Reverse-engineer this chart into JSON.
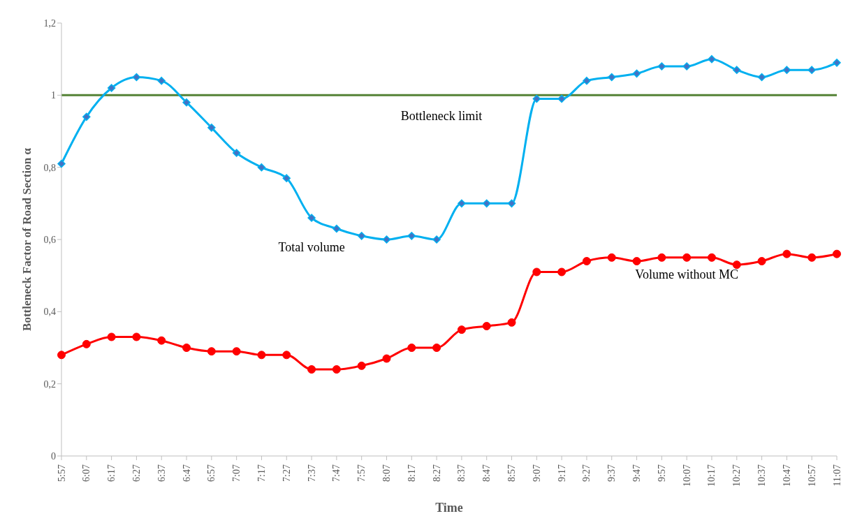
{
  "chart_data": {
    "type": "line",
    "xlabel": "Time",
    "ylabel": "Bottleneck Factor of Road Section α",
    "categories": [
      "5:57",
      "6:07",
      "6:17",
      "6:27",
      "6:37",
      "6:47",
      "6:57",
      "7:07",
      "7:17",
      "7:27",
      "7:37",
      "7:47",
      "7:57",
      "8:07",
      "8:17",
      "8:27",
      "8:37",
      "8:47",
      "8:57",
      "9:07",
      "9:17",
      "9:27",
      "9:37",
      "9:47",
      "9:57",
      "10:07",
      "10:17",
      "10:27",
      "10:37",
      "10:47",
      "10:57",
      "11:07"
    ],
    "series": [
      {
        "name": "Total volume",
        "color": "#00b0f0",
        "marker": "diamond",
        "values": [
          0.81,
          0.94,
          1.02,
          1.05,
          1.04,
          0.98,
          0.91,
          0.84,
          0.8,
          0.77,
          0.66,
          0.63,
          0.61,
          0.6,
          0.61,
          0.6,
          0.7,
          0.7,
          0.7,
          0.99,
          0.99,
          1.04,
          1.05,
          1.06,
          1.08,
          1.08,
          1.1,
          1.07,
          1.05,
          1.07,
          1.07,
          1.09
        ]
      },
      {
        "name": "Volume without MC",
        "color": "#ff0000",
        "marker": "circle",
        "values": [
          0.28,
          0.31,
          0.33,
          0.33,
          0.32,
          0.3,
          0.29,
          0.29,
          0.28,
          0.28,
          0.24,
          0.24,
          0.25,
          0.27,
          0.3,
          0.3,
          0.35,
          0.36,
          0.37,
          0.51,
          0.51,
          0.54,
          0.55,
          0.54,
          0.55,
          0.55,
          0.55,
          0.53,
          0.54,
          0.56,
          0.55,
          0.56
        ]
      }
    ],
    "ylim": [
      0,
      1.2
    ],
    "yticks": [
      {
        "value": 0,
        "label": "0"
      },
      {
        "value": 0.2,
        "label": "0,2"
      },
      {
        "value": 0.4,
        "label": "0,4"
      },
      {
        "value": 0.6,
        "label": "0,6"
      },
      {
        "value": 0.8,
        "label": "0,8"
      },
      {
        "value": 1,
        "label": "1"
      },
      {
        "value": 1.2,
        "label": "1,2"
      }
    ],
    "ref_lines": [
      {
        "axis": "y",
        "value": 1,
        "label": "Bottleneck limit",
        "color": "#548235"
      }
    ],
    "grid": false,
    "legend": false,
    "line_style": "solid"
  }
}
